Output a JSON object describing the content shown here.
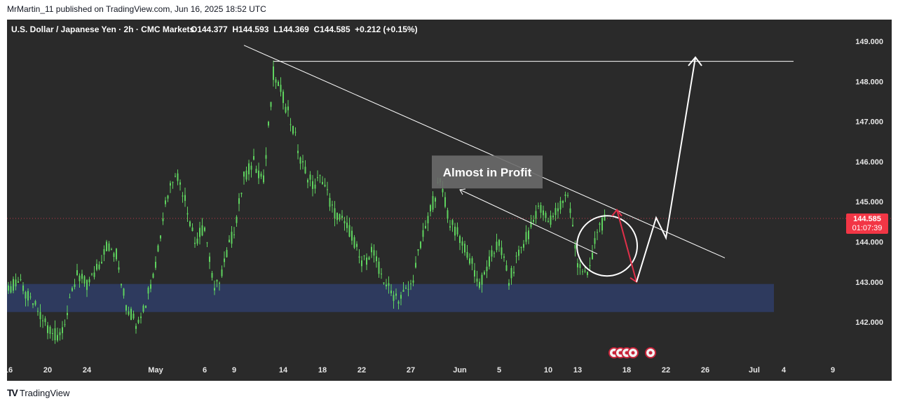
{
  "publish_line": "MrMartin_11 published on TradingView.com, Jun 16, 2025 18:52 UTC",
  "footer": {
    "brand": "TradingView"
  },
  "colors": {
    "background": "#2a2a2a",
    "candle_up": "#5fd35f",
    "support_zone": "#2e3a5e",
    "trendline": "#ffffff",
    "forecast_red": "#e0304a",
    "price_tag": "#f23645"
  },
  "chart_data": {
    "type": "candlestick",
    "symbol": "U.S. Dollar / Japanese Yen",
    "interval": "2h",
    "source": "CMC Markets",
    "header": {
      "title": "U.S. Dollar / Japanese Yen · 2h · CMC Markets",
      "ohlc": "O144.377  H144.593  L144.369  C144.585  +0.212 (+0.15%)"
    },
    "ylim": [
      141.35,
      149.55
    ],
    "y_ticks": [
      "149.000",
      "148.000",
      "147.000",
      "146.000",
      "145.000",
      "144.000",
      "143.000",
      "142.000"
    ],
    "x_ticks": [
      {
        "label": "16",
        "x": "2025-04-16"
      },
      {
        "label": "20",
        "x": "2025-04-20"
      },
      {
        "label": "24",
        "x": "2025-04-24"
      },
      {
        "label": "May",
        "x": "2025-05-01"
      },
      {
        "label": "6",
        "x": "2025-05-06"
      },
      {
        "label": "9",
        "x": "2025-05-09"
      },
      {
        "label": "14",
        "x": "2025-05-14"
      },
      {
        "label": "18",
        "x": "2025-05-18"
      },
      {
        "label": "22",
        "x": "2025-05-22"
      },
      {
        "label": "27",
        "x": "2025-05-27"
      },
      {
        "label": "Jun",
        "x": "2025-06-01"
      },
      {
        "label": "5",
        "x": "2025-06-05"
      },
      {
        "label": "10",
        "x": "2025-06-10"
      },
      {
        "label": "13",
        "x": "2025-06-13"
      },
      {
        "label": "18",
        "x": "2025-06-18"
      },
      {
        "label": "22",
        "x": "2025-06-22"
      },
      {
        "label": "26",
        "x": "2025-06-26"
      },
      {
        "label": "Jul",
        "x": "2025-07-01"
      },
      {
        "label": "4",
        "x": "2025-07-04"
      },
      {
        "label": "9",
        "x": "2025-07-09"
      }
    ],
    "price_path": [
      {
        "x": "2025-04-15",
        "y": 143.2
      },
      {
        "x": "2025-04-16",
        "y": 142.8
      },
      {
        "x": "2025-04-17",
        "y": 143.0
      },
      {
        "x": "2025-04-18",
        "y": 142.6
      },
      {
        "x": "2025-04-19",
        "y": 142.3
      },
      {
        "x": "2025-04-20",
        "y": 141.9
      },
      {
        "x": "2025-04-21",
        "y": 141.6
      },
      {
        "x": "2025-04-22",
        "y": 142.2
      },
      {
        "x": "2025-04-23",
        "y": 143.2
      },
      {
        "x": "2025-04-24",
        "y": 142.9
      },
      {
        "x": "2025-04-25",
        "y": 143.3
      },
      {
        "x": "2025-04-26",
        "y": 143.9
      },
      {
        "x": "2025-04-27",
        "y": 143.7
      },
      {
        "x": "2025-04-28",
        "y": 142.4
      },
      {
        "x": "2025-04-29",
        "y": 142.0
      },
      {
        "x": "2025-04-30",
        "y": 142.5
      },
      {
        "x": "2025-05-01",
        "y": 143.5
      },
      {
        "x": "2025-05-02",
        "y": 145.0
      },
      {
        "x": "2025-05-03",
        "y": 145.8
      },
      {
        "x": "2025-05-04",
        "y": 145.1
      },
      {
        "x": "2025-05-05",
        "y": 144.0
      },
      {
        "x": "2025-05-06",
        "y": 144.4
      },
      {
        "x": "2025-05-07",
        "y": 142.7
      },
      {
        "x": "2025-05-08",
        "y": 143.5
      },
      {
        "x": "2025-05-09",
        "y": 144.3
      },
      {
        "x": "2025-05-10",
        "y": 145.6
      },
      {
        "x": "2025-05-11",
        "y": 146.0
      },
      {
        "x": "2025-05-12",
        "y": 145.5
      },
      {
        "x": "2025-05-13",
        "y": 148.2
      },
      {
        "x": "2025-05-14",
        "y": 147.6
      },
      {
        "x": "2025-05-15",
        "y": 146.8
      },
      {
        "x": "2025-05-16",
        "y": 145.9
      },
      {
        "x": "2025-05-17",
        "y": 145.4
      },
      {
        "x": "2025-05-18",
        "y": 145.6
      },
      {
        "x": "2025-05-19",
        "y": 144.8
      },
      {
        "x": "2025-05-20",
        "y": 144.5
      },
      {
        "x": "2025-05-21",
        "y": 144.2
      },
      {
        "x": "2025-05-22",
        "y": 143.4
      },
      {
        "x": "2025-05-23",
        "y": 143.8
      },
      {
        "x": "2025-05-24",
        "y": 143.2
      },
      {
        "x": "2025-05-25",
        "y": 142.7
      },
      {
        "x": "2025-05-26",
        "y": 142.6
      },
      {
        "x": "2025-05-27",
        "y": 142.9
      },
      {
        "x": "2025-05-28",
        "y": 143.9
      },
      {
        "x": "2025-05-29",
        "y": 144.8
      },
      {
        "x": "2025-05-30",
        "y": 145.5
      },
      {
        "x": "2025-05-31",
        "y": 144.5
      },
      {
        "x": "2025-06-01",
        "y": 144.1
      },
      {
        "x": "2025-06-02",
        "y": 143.6
      },
      {
        "x": "2025-06-03",
        "y": 142.9
      },
      {
        "x": "2025-06-04",
        "y": 143.5
      },
      {
        "x": "2025-06-05",
        "y": 144.0
      },
      {
        "x": "2025-06-06",
        "y": 143.0
      },
      {
        "x": "2025-06-07",
        "y": 143.7
      },
      {
        "x": "2025-06-08",
        "y": 144.2
      },
      {
        "x": "2025-06-09",
        "y": 144.9
      },
      {
        "x": "2025-06-10",
        "y": 144.5
      },
      {
        "x": "2025-06-11",
        "y": 144.8
      },
      {
        "x": "2025-06-12",
        "y": 145.2
      },
      {
        "x": "2025-06-13",
        "y": 143.5
      },
      {
        "x": "2025-06-14",
        "y": 143.1
      },
      {
        "x": "2025-06-15",
        "y": 144.3
      },
      {
        "x": "2025-06-16",
        "y": 144.585
      }
    ],
    "current_price": {
      "value": 144.585,
      "label": "144.585",
      "countdown": "01:07:39"
    },
    "support_zone": {
      "low": 142.25,
      "high": 142.95,
      "x_end": "2025-07-03"
    },
    "horizontal_resistance": {
      "y": 148.5,
      "x_start": "2025-05-13",
      "x_end": "2025-07-05"
    },
    "descending_trendline": {
      "x1": "2025-05-10",
      "y1": 148.9,
      "x2": "2025-06-28",
      "y2": 143.6
    },
    "inner_channel_line": {
      "x1": "2025-06-01",
      "y1": 145.3,
      "x2": "2025-06-15",
      "y2": 143.7
    },
    "circle_marker": {
      "x": "2025-06-16",
      "y": 143.9
    },
    "forecast_red_arrow": [
      {
        "x": "2025-06-17",
        "y": 144.8
      },
      {
        "x": "2025-06-19",
        "y": 143.0
      }
    ],
    "forecast_white_path": [
      {
        "x": "2025-06-19",
        "y": 143.0
      },
      {
        "x": "2025-06-21",
        "y": 144.6
      },
      {
        "x": "2025-06-22",
        "y": 144.1
      },
      {
        "x": "2025-06-25",
        "y": 148.6
      }
    ],
    "annotations": [
      {
        "text": "Almost in Profit",
        "x": "2025-06-04",
        "y": 145.75
      }
    ],
    "event_markers": {
      "count": 5,
      "x": "2025-06-18"
    }
  }
}
